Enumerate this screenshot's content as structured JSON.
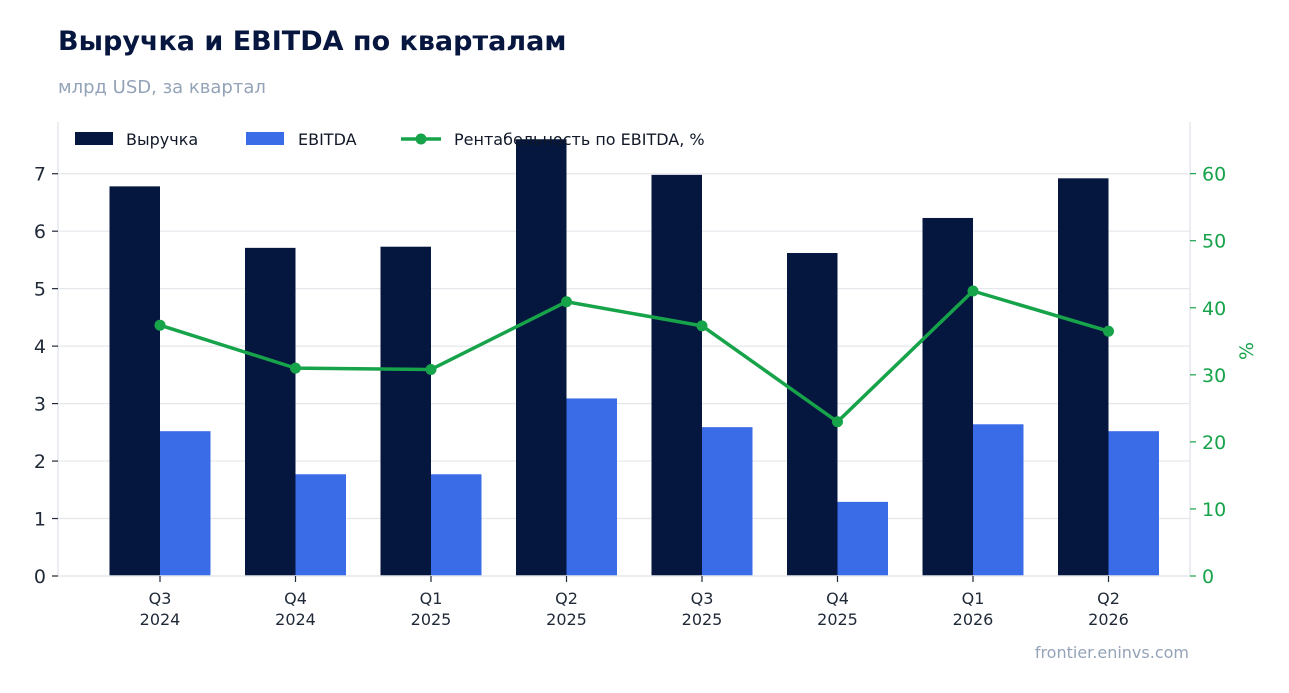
{
  "header": {
    "title": "Выручка и EBITDA по кварталам",
    "subtitle": "млрд USD, за квартал"
  },
  "footer": {
    "source": "frontier.eninvs.com"
  },
  "colors": {
    "revenue": "#05163f",
    "ebitda": "#3b6ce7",
    "margin": "#16a34a",
    "grid": "#e5e7eb",
    "axis_right": "#16a34a"
  },
  "chart_data": {
    "type": "bar",
    "categories": [
      [
        "Q3",
        "2024"
      ],
      [
        "Q4",
        "2024"
      ],
      [
        "Q1",
        "2025"
      ],
      [
        "Q2",
        "2025"
      ],
      [
        "Q3",
        "2025"
      ],
      [
        "Q4",
        "2025"
      ],
      [
        "Q1",
        "2026"
      ],
      [
        "Q2",
        "2026"
      ]
    ],
    "series": [
      {
        "name": "Выручка",
        "kind": "bar",
        "axis": "left",
        "values": [
          6.78,
          5.71,
          5.73,
          7.6,
          6.98,
          5.62,
          6.23,
          6.92
        ]
      },
      {
        "name": "EBITDA",
        "kind": "bar",
        "axis": "left",
        "values": [
          2.52,
          1.77,
          1.77,
          3.09,
          2.59,
          1.29,
          2.64,
          2.52
        ]
      },
      {
        "name": "Рентабельность по EBITDA, %",
        "kind": "line",
        "axis": "right",
        "values": [
          37.4,
          31.0,
          30.8,
          40.9,
          37.3,
          23.0,
          42.5,
          36.5
        ]
      }
    ],
    "y_left": {
      "min": 0,
      "max": 7.9,
      "ticks": [
        0,
        1,
        2,
        3,
        4,
        5,
        6,
        7
      ]
    },
    "y_right": {
      "min": 0,
      "max": 67.7,
      "ticks": [
        0,
        10,
        20,
        30,
        40,
        50,
        60
      ],
      "label": "%"
    },
    "grid": true,
    "legend_position": "top-left"
  }
}
